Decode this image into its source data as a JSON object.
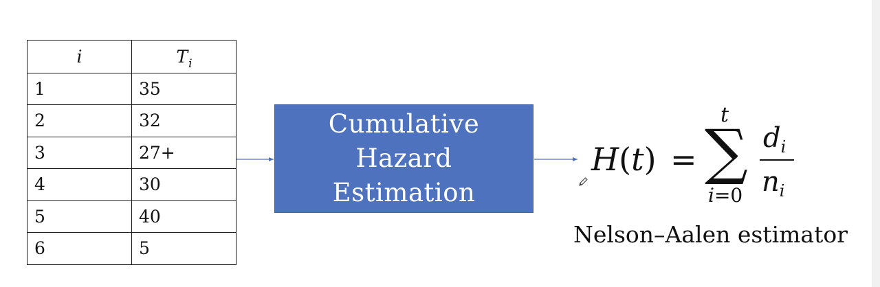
{
  "table": {
    "headers": {
      "index": "i",
      "time": "T",
      "time_sub": "i"
    },
    "rows": [
      {
        "i": "1",
        "t": "35"
      },
      {
        "i": "2",
        "t": "32"
      },
      {
        "i": "3",
        "t": "27+"
      },
      {
        "i": "4",
        "t": "30"
      },
      {
        "i": "5",
        "t": "40"
      },
      {
        "i": "6",
        "t": "5"
      }
    ]
  },
  "process_box": {
    "line1": "Cumulative",
    "line2": "Hazard",
    "line3": "Estimation",
    "color": "#4f72be"
  },
  "formula": {
    "lhs_fn": "H",
    "lhs_open": "(",
    "lhs_var": "t",
    "lhs_close": ")",
    "equals": "=",
    "sum_symbol": "∑",
    "sum_upper": "t",
    "sum_lower_var": "i",
    "sum_lower_rest": "=0",
    "numerator": "d",
    "numerator_sub": "i",
    "denominator": "n",
    "denominator_sub": "i"
  },
  "caption": "Nelson–Aalen estimator",
  "colors": {
    "arrow": "#4f72be",
    "text": "#111111"
  },
  "cursor_icon": "pencil-icon"
}
